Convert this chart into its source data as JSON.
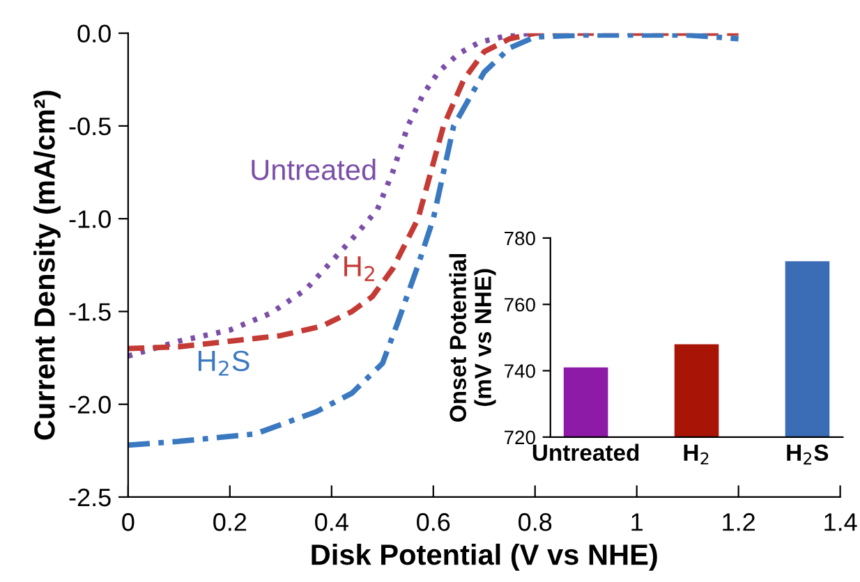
{
  "chart_data": [
    {
      "type": "line",
      "xlabel": "Disk Potential (V vs NHE)",
      "ylabel": "Current Density (mA/cm²)",
      "xlim": [
        0,
        1.4
      ],
      "ylim": [
        -2.5,
        0.0
      ],
      "xticks": [
        0,
        0.2,
        0.4,
        0.6,
        0.8,
        1,
        1.2,
        1.4
      ],
      "yticks": [
        {
          "value": -2.5,
          "label": "-2.5"
        },
        {
          "value": -2.0,
          "label": "-2.0"
        },
        {
          "value": -1.5,
          "label": "-1.5"
        },
        {
          "value": -1.0,
          "label": "-1.0"
        },
        {
          "value": -0.5,
          "label": "-0.5"
        },
        {
          "value": 0.0,
          "label": "0.0"
        }
      ],
      "grid": false,
      "legend": false,
      "marker": "none",
      "series": [
        {
          "name": "Untreated",
          "color": "#7b4ea8",
          "line_style": "dotted",
          "x": [
            0,
            0.1,
            0.2,
            0.28,
            0.35,
            0.41,
            0.45,
            0.49,
            0.52,
            0.55,
            0.58,
            0.61,
            0.65,
            0.69,
            0.75,
            0.8
          ],
          "values": [
            -1.74,
            -1.66,
            -1.6,
            -1.51,
            -1.38,
            -1.2,
            -1.08,
            -0.95,
            -0.75,
            -0.5,
            -0.33,
            -0.21,
            -0.11,
            -0.05,
            -0.01,
            0.0
          ]
        },
        {
          "name": "H$_{2}$",
          "color": "#c43a35",
          "line_style": "dashed",
          "x": [
            0,
            0.1,
            0.2,
            0.3,
            0.38,
            0.44,
            0.48,
            0.52,
            0.57,
            0.6,
            0.62,
            0.66,
            0.7,
            0.75,
            0.8,
            0.9,
            1.0,
            1.1,
            1.2
          ],
          "values": [
            -1.7,
            -1.69,
            -1.66,
            -1.63,
            -1.58,
            -1.5,
            -1.42,
            -1.27,
            -1.0,
            -0.7,
            -0.5,
            -0.25,
            -0.1,
            -0.03,
            0.0,
            0.0,
            0.0,
            0.0,
            0.0
          ]
        },
        {
          "name": "H$_{2}$S",
          "color": "#3a78c0",
          "line_style": "dashdot",
          "x": [
            0,
            0.1,
            0.25,
            0.37,
            0.44,
            0.5,
            0.53,
            0.57,
            0.6,
            0.64,
            0.7,
            0.75,
            0.8,
            0.9,
            1.0,
            1.1,
            1.2
          ],
          "values": [
            -2.22,
            -2.2,
            -2.16,
            -2.04,
            -1.94,
            -1.78,
            -1.56,
            -1.25,
            -1.0,
            -0.5,
            -0.21,
            -0.08,
            -0.02,
            -0.01,
            -0.01,
            -0.01,
            -0.03
          ]
        }
      ]
    },
    {
      "type": "bar",
      "ylabel": "Onset Potential\n(mV vs NHE)",
      "categories": [
        "Untreated",
        "H$_{2}$",
        "H$_{2}$S"
      ],
      "values": [
        741,
        748,
        773
      ],
      "colors": [
        "#8e1aa8",
        "#a81406",
        "#3a6db5"
      ],
      "ylim": [
        720,
        780
      ],
      "yticks": [
        720,
        740,
        760,
        780
      ],
      "grid": false,
      "legend": false
    }
  ]
}
